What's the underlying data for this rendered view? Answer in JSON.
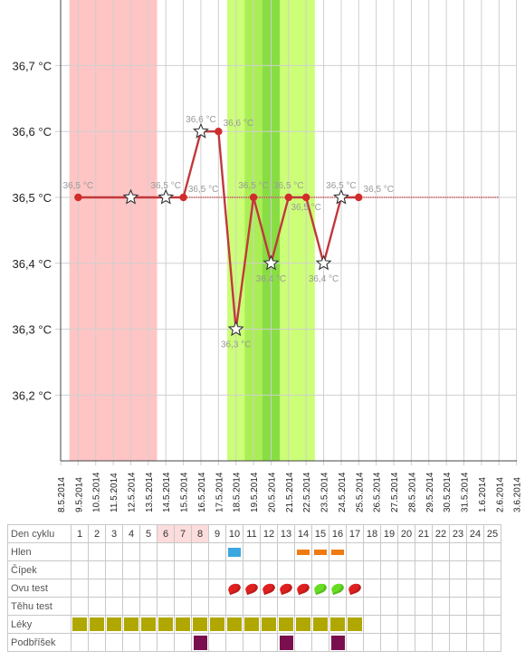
{
  "chart_data": {
    "type": "line",
    "yunit": "°C",
    "ylim": [
      36.1,
      36.8
    ],
    "yticks": [
      "36,2 °C",
      "36,3 °C",
      "36,4 °C",
      "36,5 °C",
      "36,6 °C",
      "36,7 °C"
    ],
    "x_dates": [
      "8.5.2014",
      "9.5.2014",
      "10.5.2014",
      "11.5.2014",
      "12.5.2014",
      "13.5.2014",
      "14.5.2014",
      "15.5.2014",
      "16.5.2014",
      "17.5.2014",
      "18.5.2014",
      "19.5.2014",
      "20.5.2014",
      "21.5.2014",
      "22.5.2014",
      "23.5.2014",
      "24.5.2014",
      "25.5.2014",
      "26.5.2014",
      "27.5.2014",
      "28.5.2014",
      "29.5.2014",
      "30.5.2014",
      "31.5.2014",
      "1.6.2014",
      "2.6.2014",
      "3.6.2014"
    ],
    "points": [
      {
        "date": "9.5.2014",
        "value": 36.5,
        "label": "36,5 °C",
        "marker": "dot"
      },
      {
        "date": "12.5.2014",
        "value": 36.5,
        "label": "",
        "marker": "star"
      },
      {
        "date": "14.5.2014",
        "value": 36.5,
        "label": "36,5 °C",
        "marker": "star"
      },
      {
        "date": "15.5.2014",
        "value": 36.5,
        "label": "36,5 °C",
        "marker": "dot"
      },
      {
        "date": "16.5.2014",
        "value": 36.6,
        "label": "36,6 °C",
        "marker": "star"
      },
      {
        "date": "17.5.2014",
        "value": 36.6,
        "label": "36,6 °C",
        "marker": "dot"
      },
      {
        "date": "18.5.2014",
        "value": 36.3,
        "label": "36,3 °C",
        "marker": "star"
      },
      {
        "date": "19.5.2014",
        "value": 36.5,
        "label": "36,5 °C",
        "marker": "dot"
      },
      {
        "date": "20.5.2014",
        "value": 36.4,
        "label": "36,4 °C",
        "marker": "star"
      },
      {
        "date": "21.5.2014",
        "value": 36.5,
        "label": "36,5 °C",
        "marker": "dot"
      },
      {
        "date": "22.5.2014",
        "value": 36.5,
        "label": "36,5 °C",
        "marker": "dot"
      },
      {
        "date": "23.5.2014",
        "value": 36.4,
        "label": "36,4 °C",
        "marker": "star"
      },
      {
        "date": "24.5.2014",
        "value": 36.5,
        "label": "36,5 °C",
        "marker": "star"
      },
      {
        "date": "25.5.2014",
        "value": 36.5,
        "label": "36,5 °C",
        "marker": "dot"
      }
    ],
    "coverline": {
      "value": 36.5,
      "to_date": "2.6.2014"
    },
    "bands": [
      {
        "from_date": "8.5.2014",
        "to_date": "13.5.2014",
        "color": "#ffc4c4"
      },
      {
        "from_date": "17.5.2014",
        "to_date": "22.5.2014",
        "color": "#ccff77"
      },
      {
        "from_date": "18.5.2014",
        "to_date": "19.5.2014",
        "color": "#aaee55"
      },
      {
        "from_date": "19.5.2014",
        "to_date": "20.5.2014",
        "color": "#88dd44"
      }
    ],
    "colors": {
      "line": "#c0383c",
      "dot": "#d22b2b",
      "grid": "#cfcfcf",
      "axis": "#444444"
    }
  },
  "table": {
    "header_label": "Den cyklu",
    "days": [
      "1",
      "2",
      "3",
      "4",
      "5",
      "6",
      "7",
      "8",
      "9",
      "10",
      "11",
      "12",
      "13",
      "14",
      "15",
      "16",
      "17",
      "18",
      "19",
      "20",
      "21",
      "22",
      "23",
      "24",
      "25"
    ],
    "highlight_days": [
      "6",
      "7",
      "8"
    ],
    "rows": [
      {
        "label": "Hlen",
        "marks": {
          "10": "blue",
          "14": "orange",
          "15": "orange",
          "16": "orange"
        }
      },
      {
        "label": "Čípek",
        "marks": {}
      },
      {
        "label": "Ovu test",
        "marks": {
          "10": "red-drop",
          "11": "red-drop",
          "12": "red-drop",
          "13": "red-drop",
          "14": "red-drop",
          "15": "green-drop",
          "16": "green-drop",
          "17": "red-drop"
        }
      },
      {
        "label": "Těhu test",
        "marks": {}
      },
      {
        "label": "Léky",
        "marks": {
          "1": "olive",
          "2": "olive",
          "3": "olive",
          "4": "olive",
          "5": "olive",
          "6": "olive",
          "7": "olive",
          "8": "olive",
          "9": "olive",
          "10": "olive",
          "11": "olive",
          "12": "olive",
          "13": "olive",
          "14": "olive",
          "15": "olive",
          "16": "olive",
          "17": "olive"
        }
      },
      {
        "label": "Podbříšek",
        "marks": {
          "8": "purple",
          "13": "purple",
          "16": "purple"
        }
      }
    ],
    "mark_colors": {
      "blue": "#3aa7e0",
      "orange": "#f07a10",
      "red-drop": "#e02020",
      "green-drop": "#66dd22",
      "olive": "#b0a800",
      "purple": "#7a0f4f"
    }
  }
}
